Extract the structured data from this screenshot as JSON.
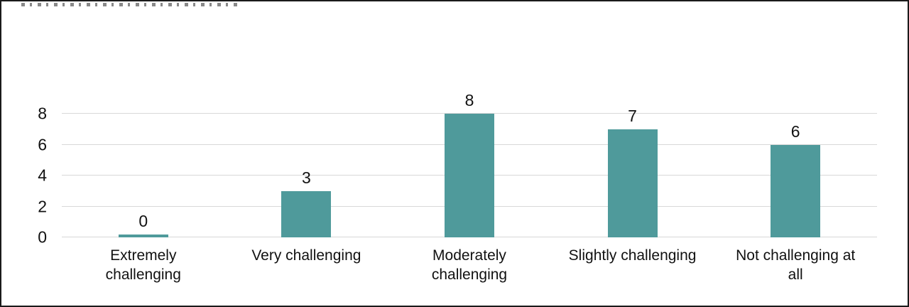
{
  "figure": {
    "background": "#ffffff",
    "border_color": "#1a1a1a"
  },
  "chart_data": {
    "type": "bar",
    "title": "",
    "xlabel": "",
    "ylabel": "",
    "categories": [
      "Extremely challenging",
      "Very challenging",
      "Moderately challenging",
      "Slightly challenging",
      "Not challenging at all"
    ],
    "values": [
      0,
      3,
      8,
      7,
      6
    ],
    "value_labels": [
      "0",
      "3",
      "8",
      "7",
      "6"
    ],
    "ylim": [
      0,
      8
    ],
    "yticks": [
      0,
      2,
      4,
      6,
      8
    ],
    "ytick_labels": [
      "0",
      "2",
      "4",
      "6",
      "8"
    ],
    "grid": true,
    "legend": false,
    "bar_color": "#4f9a9b",
    "gridline_color": "#d8d8d8",
    "text_color": "#111111"
  }
}
